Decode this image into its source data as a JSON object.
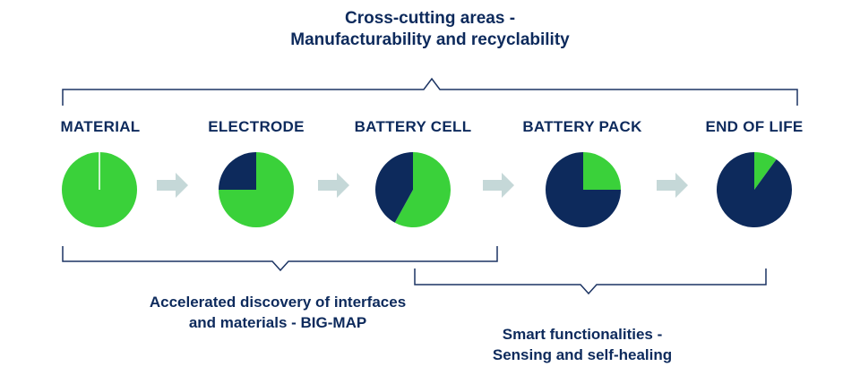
{
  "top_caption": {
    "line1": "Cross-cutting areas -",
    "line2": "Manufacturability and recyclability"
  },
  "stages": [
    {
      "label": "MATERIAL",
      "green_fraction": 1.0
    },
    {
      "label": "ELECTRODE",
      "green_fraction": 0.75
    },
    {
      "label": "BATTERY CELL",
      "green_fraction": 0.58
    },
    {
      "label": "BATTERY PACK",
      "green_fraction": 0.25
    },
    {
      "label": "END OF LIFE",
      "green_fraction": 0.1
    }
  ],
  "left_caption": {
    "line1": "Accelerated discovery of interfaces",
    "line2": "and materials - BIG-MAP"
  },
  "right_caption": {
    "line1": "Smart functionalities -",
    "line2": "Sensing and self-healing"
  },
  "colors": {
    "navy": "#0d2a5c",
    "green": "#3ad13a",
    "arrow": "#c5d8d8",
    "bracket": "#1c3463"
  }
}
